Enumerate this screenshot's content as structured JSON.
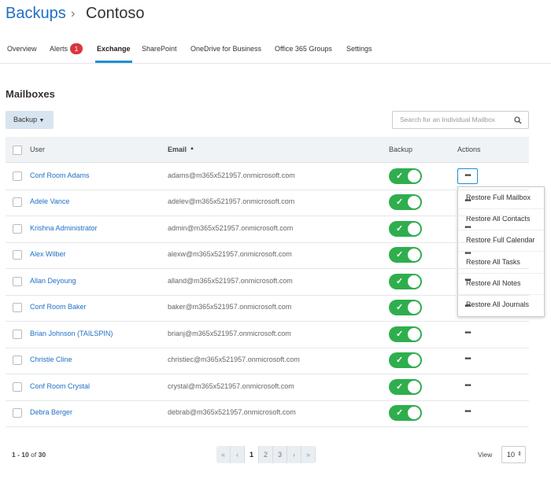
{
  "breadcrumb": {
    "root": "Backups",
    "current": "Contoso"
  },
  "tabs": [
    {
      "label": "Overview"
    },
    {
      "label": "Alerts",
      "badge": 1
    },
    {
      "label": "Exchange",
      "active": true
    },
    {
      "label": "SharePoint"
    },
    {
      "label": "OneDrive for Business"
    },
    {
      "label": "Office 365 Groups"
    },
    {
      "label": "Settings"
    }
  ],
  "section_title": "Mailboxes",
  "toolbar": {
    "button": "Backup",
    "search_placeholder": "Search for an Individual Mailbox"
  },
  "table": {
    "columns": [
      "User",
      "Email",
      "Backup",
      "Actions"
    ],
    "rows": [
      {
        "user": "Conf Room Adams",
        "email": "adams@m365x521957.onmicrosoft.com",
        "backup": true
      },
      {
        "user": "Adele Vance",
        "email": "adelev@m365x521957.onmicrosoft.com",
        "backup": true
      },
      {
        "user": "Krishna Administrator",
        "email": "admin@m365x521957.onmicrosoft.com",
        "backup": true
      },
      {
        "user": "Alex Wilber",
        "email": "alexw@m365x521957.onmicrosoft.com",
        "backup": true
      },
      {
        "user": "Allan Deyoung",
        "email": "alland@m365x521957.onmicrosoft.com",
        "backup": true
      },
      {
        "user": "Conf Room Baker",
        "email": "baker@m365x521957.onmicrosoft.com",
        "backup": true
      },
      {
        "user": "Brian Johnson (TAILSPIN)",
        "email": "brianj@m365x521957.onmicrosoft.com",
        "backup": true
      },
      {
        "user": "Christie Cline",
        "email": "christiec@m365x521957.onmicrosoft.com",
        "backup": true
      },
      {
        "user": "Conf Room Crystal",
        "email": "crystal@m365x521957.onmicrosoft.com",
        "backup": true
      },
      {
        "user": "Debra Berger",
        "email": "debrab@m365x521957.onmicrosoft.com",
        "backup": true
      }
    ]
  },
  "actions_menu": {
    "open_row": 0,
    "items": [
      "Restore Full Mailbox",
      "Restore All Contacts",
      "Restore Full Calendar",
      "Restore All Tasks",
      "Restore All Notes",
      "Restore All Journals"
    ]
  },
  "pagination": {
    "range": "1 - 10",
    "of": "of",
    "total": 30,
    "pages": [
      1,
      2,
      3
    ],
    "current": 1
  },
  "view": {
    "label": "View",
    "value": 10
  }
}
